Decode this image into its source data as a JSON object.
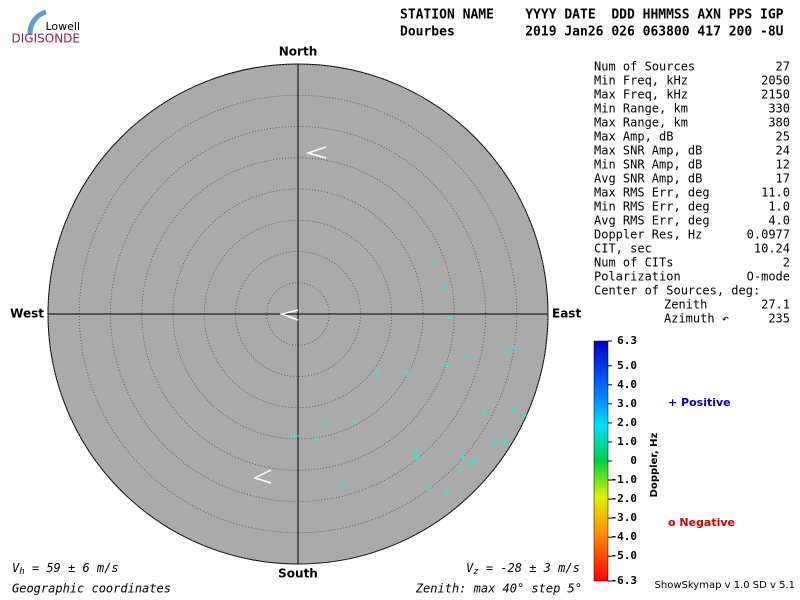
{
  "logo": {
    "top": "Lowell",
    "bottom": "DIGISONDE"
  },
  "header": {
    "line1": "STATION NAME    YYYY DATE  DDD HHMMSS AXN PPS IGP",
    "line2": "Dourbes         2019 Jan26 026 063800 417 200 -8U"
  },
  "stats": [
    [
      "Num of Sources",
      "27"
    ],
    [
      "Min Freq, kHz",
      "2050"
    ],
    [
      "Max Freq, kHz",
      "2150"
    ],
    [
      "Min Range, km",
      "330"
    ],
    [
      "Max Range, km",
      "380"
    ],
    [
      "Max Amp, dB",
      "25"
    ],
    [
      "Max SNR Amp, dB",
      "24"
    ],
    [
      "Min SNR Amp, dB",
      "12"
    ],
    [
      "Avg SNR Amp, dB",
      "17"
    ],
    [
      "Max RMS Err, deg",
      "11.0"
    ],
    [
      "Min RMS Err, deg",
      "1.0"
    ],
    [
      "Avg RMS Err, deg",
      "4.0"
    ],
    [
      "Doppler Res, Hz",
      "0.0977"
    ],
    [
      "CIT, sec",
      "10.24"
    ],
    [
      "Num of CITs",
      "2"
    ],
    [
      "Polarization",
      "O-mode"
    ]
  ],
  "center": {
    "title": "Center of Sources, deg:",
    "rows": [
      [
        "Zenith",
        "27.1"
      ],
      [
        "Azimuth ↶",
        "235"
      ]
    ]
  },
  "legend": {
    "positive": "+ Positive",
    "negative": "o Negative"
  },
  "colorbar": {
    "title": "Doppler, Hz",
    "lim": [
      -6.3,
      6.3
    ],
    "ticks": [
      6.3,
      {
        "value": 5,
        "label": "5.0"
      },
      {
        "value": 4,
        "label": "4.0"
      },
      {
        "value": 3,
        "label": "3.0"
      },
      {
        "value": 2,
        "label": "2.0"
      },
      {
        "value": 1,
        "label": "1.0"
      },
      0,
      {
        "value": -1,
        "label": "-1.0"
      },
      {
        "value": -2,
        "label": "-2.0"
      },
      {
        "value": -3,
        "label": "-3.0"
      },
      {
        "value": -4,
        "label": "-4.0"
      },
      {
        "value": -5,
        "label": "-5.0"
      },
      -6.3
    ]
  },
  "footer": {
    "vh_v": "V",
    "vh_sub": "h",
    "vh_text": " = 59 ± 6 m/s",
    "vz_v": "V",
    "vz_sub": "z",
    "vz_text": " = -28 ± 3 m/s",
    "coords": "Geographic coordinates",
    "zenith": "Zenith: max 40°  step 5°",
    "version": "ShowSkymap v 1.0  SD v 5.1"
  },
  "chart_data": {
    "type": "skymap",
    "directions": {
      "north": "North",
      "south": "South",
      "east": "East",
      "west": "West"
    },
    "rlim": [
      0,
      40
    ],
    "rings": [
      5,
      10,
      15,
      20,
      25,
      30,
      35,
      40
    ],
    "color": "#20f0d0",
    "x": [
      21.6,
      23.5,
      24.3,
      26.9,
      23.8,
      17.4,
      12.6,
      33.4,
      34.6,
      29.8,
      34.6,
      36.2,
      31.4,
      33.1,
      4.5,
      8.8,
      2.9,
      -0.3,
      18.7,
      19.0,
      26.4,
      28.5,
      27.8,
      25.8,
      20.8,
      23.8,
      7.2
    ],
    "y": [
      8.3,
      4.3,
      -0.6,
      -6.7,
      -8.3,
      -9.4,
      -9.4,
      -5.9,
      -5.4,
      -15.8,
      -15.2,
      -16.3,
      -20.5,
      -20.3,
      -17.4,
      -17.3,
      -20.0,
      -19.5,
      -22.4,
      -22.9,
      -22.9,
      -23.4,
      -23.8,
      -25.0,
      -27.8,
      -28.6,
      -27.2
    ]
  }
}
